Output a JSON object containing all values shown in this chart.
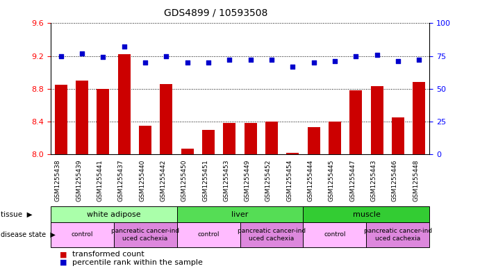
{
  "title": "GDS4899 / 10593508",
  "samples": [
    "GSM1255438",
    "GSM1255439",
    "GSM1255441",
    "GSM1255437",
    "GSM1255440",
    "GSM1255442",
    "GSM1255450",
    "GSM1255451",
    "GSM1255453",
    "GSM1255449",
    "GSM1255452",
    "GSM1255454",
    "GSM1255444",
    "GSM1255445",
    "GSM1255447",
    "GSM1255443",
    "GSM1255446",
    "GSM1255448"
  ],
  "transformed_count": [
    8.85,
    8.9,
    8.8,
    9.22,
    8.35,
    8.86,
    8.07,
    8.3,
    8.38,
    8.38,
    8.4,
    8.02,
    8.33,
    8.4,
    8.78,
    8.83,
    8.45,
    8.88
  ],
  "percentile_rank": [
    75,
    77,
    74,
    82,
    70,
    75,
    70,
    70,
    72,
    72,
    72,
    67,
    70,
    71,
    75,
    76,
    71,
    72
  ],
  "ylim_left": [
    8.0,
    9.6
  ],
  "ylim_right": [
    0,
    100
  ],
  "yticks_left": [
    8.0,
    8.4,
    8.8,
    9.2,
    9.6
  ],
  "yticks_right": [
    0,
    25,
    50,
    75,
    100
  ],
  "bar_color": "#cc0000",
  "dot_color": "#0000cc",
  "tissue_groups": [
    {
      "label": "white adipose",
      "start": 0,
      "end": 6,
      "color": "#aaffaa"
    },
    {
      "label": "liver",
      "start": 6,
      "end": 12,
      "color": "#55dd55"
    },
    {
      "label": "muscle",
      "start": 12,
      "end": 18,
      "color": "#33cc33"
    }
  ],
  "disease_groups": [
    {
      "label": "control",
      "start": 0,
      "end": 3,
      "color": "#ffbbff"
    },
    {
      "label": "pancreatic cancer-ind\nuced cachexia",
      "start": 3,
      "end": 6,
      "color": "#dd88dd"
    },
    {
      "label": "control",
      "start": 6,
      "end": 9,
      "color": "#ffbbff"
    },
    {
      "label": "pancreatic cancer-ind\nuced cachexia",
      "start": 9,
      "end": 12,
      "color": "#dd88dd"
    },
    {
      "label": "control",
      "start": 12,
      "end": 15,
      "color": "#ffbbff"
    },
    {
      "label": "pancreatic cancer-ind\nuced cachexia",
      "start": 15,
      "end": 18,
      "color": "#dd88dd"
    }
  ],
  "legend_items": [
    {
      "label": "transformed count",
      "color": "#cc0000"
    },
    {
      "label": "percentile rank within the sample",
      "color": "#0000cc"
    }
  ],
  "background_color": "#ffffff",
  "grid_color": "#000000",
  "xtick_bg": "#cccccc",
  "title_fontsize": 10
}
